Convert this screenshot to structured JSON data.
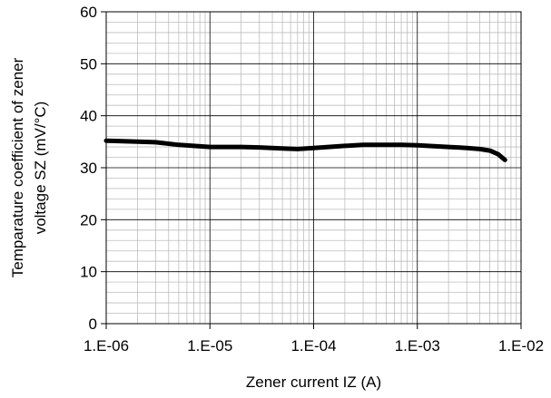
{
  "chart_data": {
    "type": "line",
    "title": "",
    "xlabel": "Zener current IZ (A)",
    "ylabel_lines": [
      "Temparature coefficient of zener",
      "voltage SZ (mV/°C)"
    ],
    "x_scale": "log",
    "xlim": [
      1e-06,
      0.01
    ],
    "ylim": [
      0,
      60
    ],
    "y_ticks": [
      0,
      10,
      20,
      30,
      40,
      50,
      60
    ],
    "y_tick_labels": [
      "0",
      "10",
      "20",
      "30",
      "40",
      "50",
      "60"
    ],
    "x_ticks": [
      1e-06,
      1e-05,
      0.0001,
      0.001,
      0.01
    ],
    "x_tick_labels": [
      "1.E-06",
      "1.E-05",
      "1.E-04",
      "1.E-03",
      "1.E-02"
    ],
    "grid": true,
    "legend": "none",
    "series": [
      {
        "color": "#000000",
        "x": [
          1e-06,
          2e-06,
          3e-06,
          5e-06,
          1e-05,
          2e-05,
          3e-05,
          5e-05,
          7e-05,
          0.0001,
          0.0002,
          0.0003,
          0.0005,
          0.0007,
          0.001,
          0.002,
          0.003,
          0.004,
          0.005,
          0.006,
          0.007
        ],
        "y": [
          35.2,
          35.0,
          34.9,
          34.4,
          34.0,
          34.0,
          33.9,
          33.7,
          33.6,
          33.8,
          34.2,
          34.4,
          34.4,
          34.4,
          34.3,
          34.0,
          33.8,
          33.6,
          33.3,
          32.6,
          31.5
        ]
      }
    ]
  }
}
